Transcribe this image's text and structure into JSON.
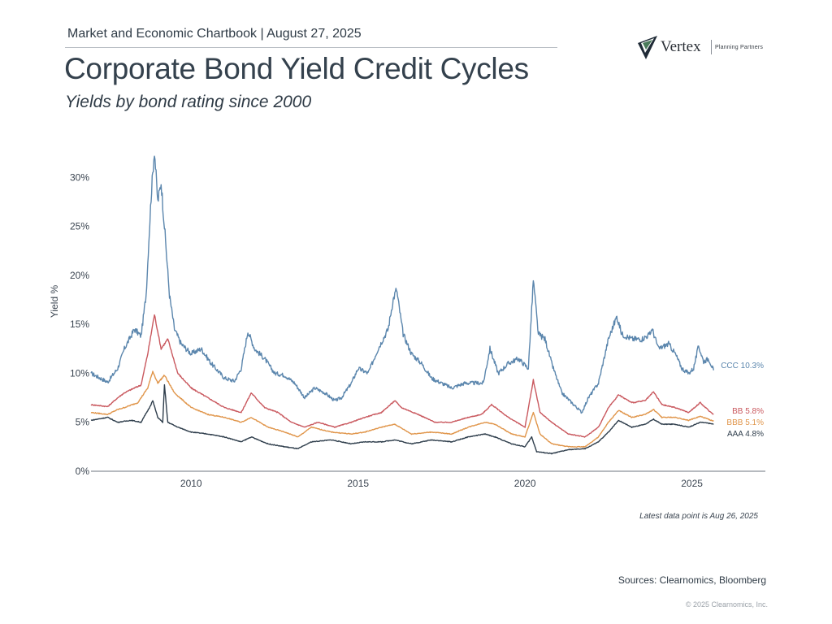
{
  "header": {
    "kicker": "Market and Economic Chartbook | August 27, 2025",
    "title": "Corporate Bond Yield Credit Cycles",
    "subtitle": "Yields by bond rating since 2000"
  },
  "logo": {
    "name": "Vertex",
    "tagline": "Planning Partners"
  },
  "footer": {
    "note": "Latest data point is Aug 26, 2025",
    "sources": "Sources: Clearnomics, Bloomberg",
    "copyright": "© 2025 Clearnomics, Inc."
  },
  "colors": {
    "CCC": "#5b86ad",
    "BB": "#c9585e",
    "BBB": "#e0954a",
    "AAA": "#2f3e4c",
    "axis": "#8a9199",
    "tick_text": "#3a4450"
  },
  "chart_data": {
    "type": "line",
    "title": "Corporate Bond Yield Credit Cycles",
    "ylabel": "Yield %",
    "xlim": [
      2007.0,
      2027.2
    ],
    "ylim": [
      0,
      35
    ],
    "x_ticks": [
      2010,
      2015,
      2020,
      2025
    ],
    "x_tick_labels": [
      "2010",
      "2015",
      "2020",
      "2025"
    ],
    "y_ticks": [
      0,
      5,
      10,
      15,
      20,
      25,
      30
    ],
    "y_tick_labels": [
      "0%",
      "5%",
      "10%",
      "15%",
      "20%",
      "25%",
      "30%"
    ],
    "grid": false,
    "legend": "end-labels",
    "series": [
      {
        "name": "CCC",
        "end_label": "CCC 10.3%",
        "points": [
          [
            2007.0,
            10.0
          ],
          [
            2007.5,
            9.1
          ],
          [
            2007.8,
            10.5
          ],
          [
            2008.0,
            12.5
          ],
          [
            2008.3,
            14.5
          ],
          [
            2008.5,
            13.8
          ],
          [
            2008.65,
            18.0
          ],
          [
            2008.8,
            28.0
          ],
          [
            2008.9,
            32.8
          ],
          [
            2009.0,
            27.5
          ],
          [
            2009.1,
            29.5
          ],
          [
            2009.2,
            25.0
          ],
          [
            2009.35,
            18.0
          ],
          [
            2009.5,
            14.5
          ],
          [
            2009.7,
            13.0
          ],
          [
            2010.0,
            12.0
          ],
          [
            2010.3,
            12.5
          ],
          [
            2010.6,
            11.0
          ],
          [
            2011.0,
            9.5
          ],
          [
            2011.3,
            9.2
          ],
          [
            2011.5,
            10.5
          ],
          [
            2011.7,
            14.3
          ],
          [
            2011.9,
            12.5
          ],
          [
            2012.2,
            11.5
          ],
          [
            2012.5,
            10.0
          ],
          [
            2012.8,
            9.8
          ],
          [
            2013.1,
            9.0
          ],
          [
            2013.4,
            7.5
          ],
          [
            2013.7,
            8.5
          ],
          [
            2014.0,
            8.0
          ],
          [
            2014.3,
            7.2
          ],
          [
            2014.5,
            7.5
          ],
          [
            2014.8,
            9.0
          ],
          [
            2015.0,
            10.5
          ],
          [
            2015.3,
            10.0
          ],
          [
            2015.6,
            12.5
          ],
          [
            2015.9,
            14.5
          ],
          [
            2016.05,
            17.5
          ],
          [
            2016.15,
            18.6
          ],
          [
            2016.35,
            14.0
          ],
          [
            2016.6,
            12.0
          ],
          [
            2016.9,
            11.0
          ],
          [
            2017.2,
            9.5
          ],
          [
            2017.5,
            9.0
          ],
          [
            2017.8,
            8.5
          ],
          [
            2018.2,
            9.0
          ],
          [
            2018.5,
            9.0
          ],
          [
            2018.75,
            9.0
          ],
          [
            2018.95,
            12.5
          ],
          [
            2019.2,
            10.0
          ],
          [
            2019.5,
            11.0
          ],
          [
            2019.8,
            11.5
          ],
          [
            2020.1,
            10.5
          ],
          [
            2020.25,
            19.5
          ],
          [
            2020.4,
            14.0
          ],
          [
            2020.6,
            13.5
          ],
          [
            2020.8,
            11.0
          ],
          [
            2021.1,
            8.0
          ],
          [
            2021.4,
            7.0
          ],
          [
            2021.7,
            6.0
          ],
          [
            2021.9,
            7.5
          ],
          [
            2022.2,
            9.0
          ],
          [
            2022.5,
            13.5
          ],
          [
            2022.75,
            15.8
          ],
          [
            2022.9,
            14.0
          ],
          [
            2023.2,
            13.5
          ],
          [
            2023.5,
            13.5
          ],
          [
            2023.75,
            14.0
          ],
          [
            2023.8,
            14.6
          ],
          [
            2024.0,
            12.5
          ],
          [
            2024.3,
            13.0
          ],
          [
            2024.5,
            12.0
          ],
          [
            2024.7,
            10.5
          ],
          [
            2024.9,
            10.0
          ],
          [
            2025.05,
            10.5
          ],
          [
            2025.2,
            12.8
          ],
          [
            2025.35,
            11.2
          ],
          [
            2025.5,
            11.5
          ],
          [
            2025.65,
            10.3
          ]
        ]
      },
      {
        "name": "BB",
        "end_label": "BB 5.8%",
        "points": [
          [
            2007.0,
            6.8
          ],
          [
            2007.5,
            6.6
          ],
          [
            2007.8,
            7.5
          ],
          [
            2008.0,
            8.0
          ],
          [
            2008.3,
            8.5
          ],
          [
            2008.5,
            8.8
          ],
          [
            2008.7,
            12.0
          ],
          [
            2008.9,
            16.0
          ],
          [
            2009.1,
            12.5
          ],
          [
            2009.3,
            13.5
          ],
          [
            2009.6,
            10.0
          ],
          [
            2010.0,
            8.5
          ],
          [
            2010.5,
            7.5
          ],
          [
            2011.0,
            6.5
          ],
          [
            2011.5,
            6.0
          ],
          [
            2011.8,
            8.0
          ],
          [
            2012.2,
            6.5
          ],
          [
            2012.6,
            6.0
          ],
          [
            2013.0,
            5.0
          ],
          [
            2013.4,
            4.5
          ],
          [
            2013.8,
            5.0
          ],
          [
            2014.3,
            4.5
          ],
          [
            2014.8,
            5.0
          ],
          [
            2015.2,
            5.5
          ],
          [
            2015.7,
            6.0
          ],
          [
            2016.1,
            7.2
          ],
          [
            2016.3,
            6.5
          ],
          [
            2016.8,
            5.8
          ],
          [
            2017.3,
            5.0
          ],
          [
            2017.8,
            5.0
          ],
          [
            2018.3,
            5.5
          ],
          [
            2018.7,
            5.8
          ],
          [
            2019.0,
            6.8
          ],
          [
            2019.5,
            5.5
          ],
          [
            2020.0,
            4.5
          ],
          [
            2020.25,
            9.3
          ],
          [
            2020.45,
            6.0
          ],
          [
            2020.8,
            5.0
          ],
          [
            2021.3,
            3.8
          ],
          [
            2021.8,
            3.5
          ],
          [
            2022.2,
            4.5
          ],
          [
            2022.5,
            6.5
          ],
          [
            2022.8,
            7.8
          ],
          [
            2023.2,
            7.0
          ],
          [
            2023.6,
            7.2
          ],
          [
            2023.85,
            8.1
          ],
          [
            2024.1,
            6.8
          ],
          [
            2024.5,
            6.5
          ],
          [
            2024.9,
            6.0
          ],
          [
            2025.25,
            7.0
          ],
          [
            2025.5,
            6.2
          ],
          [
            2025.65,
            5.8
          ]
        ]
      },
      {
        "name": "BBB",
        "end_label": "BBB 5.1%",
        "points": [
          [
            2007.0,
            6.0
          ],
          [
            2007.5,
            5.8
          ],
          [
            2007.8,
            6.3
          ],
          [
            2008.0,
            6.5
          ],
          [
            2008.4,
            7.0
          ],
          [
            2008.7,
            8.5
          ],
          [
            2008.85,
            10.2
          ],
          [
            2009.0,
            9.0
          ],
          [
            2009.2,
            9.8
          ],
          [
            2009.5,
            8.0
          ],
          [
            2010.0,
            6.5
          ],
          [
            2010.5,
            5.8
          ],
          [
            2011.0,
            5.5
          ],
          [
            2011.5,
            5.0
          ],
          [
            2011.8,
            5.5
          ],
          [
            2012.3,
            4.5
          ],
          [
            2012.8,
            4.0
          ],
          [
            2013.2,
            3.5
          ],
          [
            2013.6,
            4.5
          ],
          [
            2014.2,
            4.0
          ],
          [
            2014.8,
            3.8
          ],
          [
            2015.2,
            4.0
          ],
          [
            2015.7,
            4.5
          ],
          [
            2016.1,
            4.8
          ],
          [
            2016.6,
            3.8
          ],
          [
            2017.2,
            4.0
          ],
          [
            2017.8,
            3.8
          ],
          [
            2018.3,
            4.5
          ],
          [
            2018.8,
            5.0
          ],
          [
            2019.1,
            4.8
          ],
          [
            2019.6,
            3.8
          ],
          [
            2020.0,
            3.5
          ],
          [
            2020.25,
            6.0
          ],
          [
            2020.45,
            3.8
          ],
          [
            2020.8,
            2.8
          ],
          [
            2021.3,
            2.5
          ],
          [
            2021.8,
            2.5
          ],
          [
            2022.2,
            3.5
          ],
          [
            2022.5,
            5.0
          ],
          [
            2022.8,
            6.2
          ],
          [
            2023.2,
            5.5
          ],
          [
            2023.6,
            5.8
          ],
          [
            2023.85,
            6.3
          ],
          [
            2024.1,
            5.5
          ],
          [
            2024.5,
            5.5
          ],
          [
            2024.9,
            5.2
          ],
          [
            2025.25,
            5.6
          ],
          [
            2025.5,
            5.3
          ],
          [
            2025.65,
            5.1
          ]
        ]
      },
      {
        "name": "AAA",
        "end_label": "AAA 4.8%",
        "points": [
          [
            2007.0,
            5.2
          ],
          [
            2007.5,
            5.5
          ],
          [
            2007.8,
            5.0
          ],
          [
            2008.2,
            5.2
          ],
          [
            2008.5,
            5.0
          ],
          [
            2008.75,
            6.5
          ],
          [
            2008.85,
            7.2
          ],
          [
            2009.0,
            5.5
          ],
          [
            2009.15,
            5.0
          ],
          [
            2009.2,
            8.8
          ],
          [
            2009.3,
            5.0
          ],
          [
            2009.6,
            4.5
          ],
          [
            2010.0,
            4.0
          ],
          [
            2010.5,
            3.8
          ],
          [
            2011.0,
            3.5
          ],
          [
            2011.5,
            3.0
          ],
          [
            2011.8,
            3.5
          ],
          [
            2012.3,
            2.8
          ],
          [
            2012.8,
            2.5
          ],
          [
            2013.2,
            2.3
          ],
          [
            2013.6,
            3.0
          ],
          [
            2014.2,
            3.2
          ],
          [
            2014.8,
            2.8
          ],
          [
            2015.2,
            3.0
          ],
          [
            2015.7,
            3.0
          ],
          [
            2016.1,
            3.2
          ],
          [
            2016.6,
            2.8
          ],
          [
            2017.2,
            3.2
          ],
          [
            2017.8,
            3.0
          ],
          [
            2018.3,
            3.5
          ],
          [
            2018.8,
            3.8
          ],
          [
            2019.1,
            3.5
          ],
          [
            2019.6,
            2.8
          ],
          [
            2020.0,
            2.5
          ],
          [
            2020.2,
            3.5
          ],
          [
            2020.35,
            2.0
          ],
          [
            2020.8,
            1.8
          ],
          [
            2021.3,
            2.2
          ],
          [
            2021.8,
            2.3
          ],
          [
            2022.2,
            3.0
          ],
          [
            2022.5,
            4.0
          ],
          [
            2022.8,
            5.2
          ],
          [
            2023.2,
            4.5
          ],
          [
            2023.6,
            4.8
          ],
          [
            2023.85,
            5.3
          ],
          [
            2024.1,
            4.8
          ],
          [
            2024.5,
            4.8
          ],
          [
            2024.9,
            4.5
          ],
          [
            2025.25,
            5.0
          ],
          [
            2025.5,
            4.9
          ],
          [
            2025.65,
            4.8
          ]
        ]
      }
    ]
  }
}
